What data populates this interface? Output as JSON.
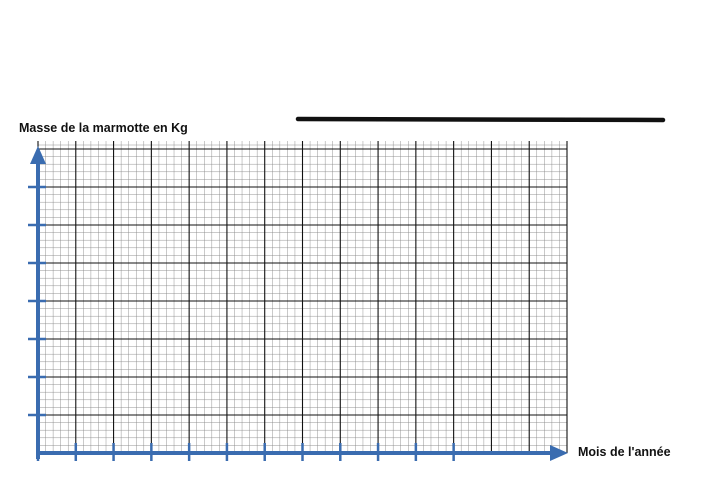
{
  "chart_data": {
    "type": "line",
    "title": "",
    "xlabel": "Mois de l'année",
    "ylabel": "Masse de la marmotte en Kg",
    "grid": true,
    "grid_major_cols": 14,
    "grid_major_rows": 8,
    "grid_minor_per_major": 5,
    "x_tick_count": 12,
    "y_tick_count": 7,
    "series": [],
    "colors": {
      "axis": "#3a6cb0",
      "grid_major": "#111111",
      "grid_minor": "#888888",
      "answer_line": "#111111"
    }
  }
}
